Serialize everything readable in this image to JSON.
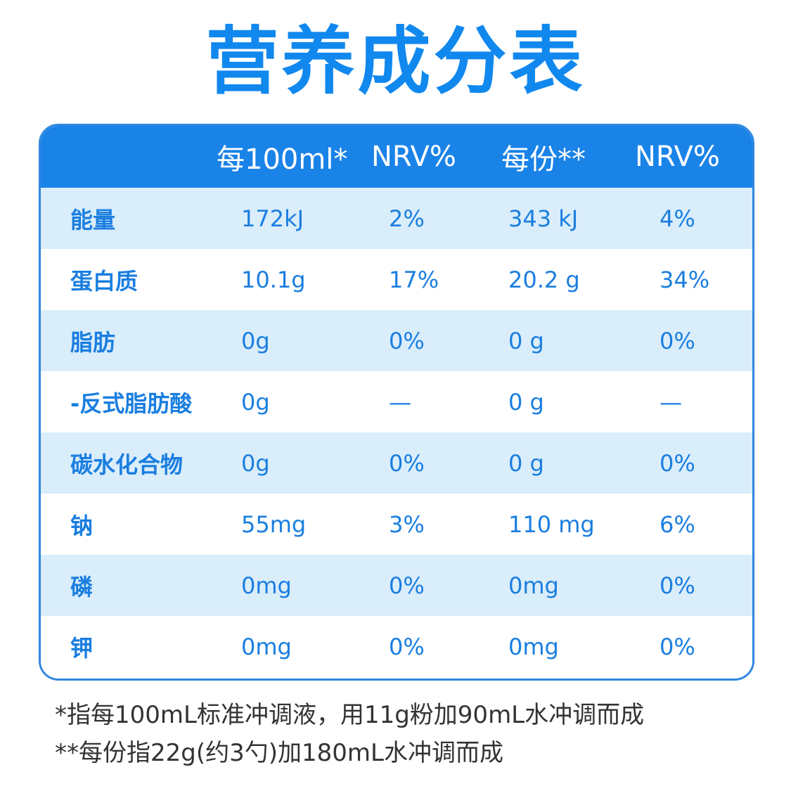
{
  "title": "营养成分表",
  "header": {
    "col0": "",
    "col1": "每100ml*",
    "col2": "NRV%",
    "col3": "每份**",
    "col4": "NRV%"
  },
  "rows": [
    {
      "name": "能量",
      "per100": "172kJ",
      "nrv1": "2%",
      "perServing": "343 kJ",
      "nrv2": "4%"
    },
    {
      "name": "蛋白质",
      "per100": "10.1g",
      "nrv1": "17%",
      "perServing": "20.2 g",
      "nrv2": "34%"
    },
    {
      "name": "脂肪",
      "per100": "0g",
      "nrv1": "0%",
      "perServing": "0 g",
      "nrv2": "0%"
    },
    {
      "name": "-反式脂肪酸",
      "per100": "0g",
      "nrv1": "—",
      "perServing": "0 g",
      "nrv2": "—"
    },
    {
      "name": "碳水化合物",
      "per100": "0g",
      "nrv1": "0%",
      "perServing": "0 g",
      "nrv2": "0%"
    },
    {
      "name": "钠",
      "per100": "55mg",
      "nrv1": "3%",
      "perServing": "110 mg",
      "nrv2": "6%"
    },
    {
      "name": "磷",
      "per100": "0mg",
      "nrv1": "0%",
      "perServing": "0mg",
      "nrv2": "0%"
    },
    {
      "name": "钾",
      "per100": "0mg",
      "nrv1": "0%",
      "perServing": "0mg",
      "nrv2": "0%"
    }
  ],
  "footnotes": [
    "*指每100mL标准冲调液，用11g粉加90mL水冲调而成",
    "**每份指22g(约3勺)加180mL水冲调而成"
  ],
  "colors": {
    "title": "#1188ee",
    "header_bg": "#1a83e8",
    "row_shade": "#daedfb",
    "text_blue": "#1a7ee0",
    "border": "#2f87e0"
  }
}
